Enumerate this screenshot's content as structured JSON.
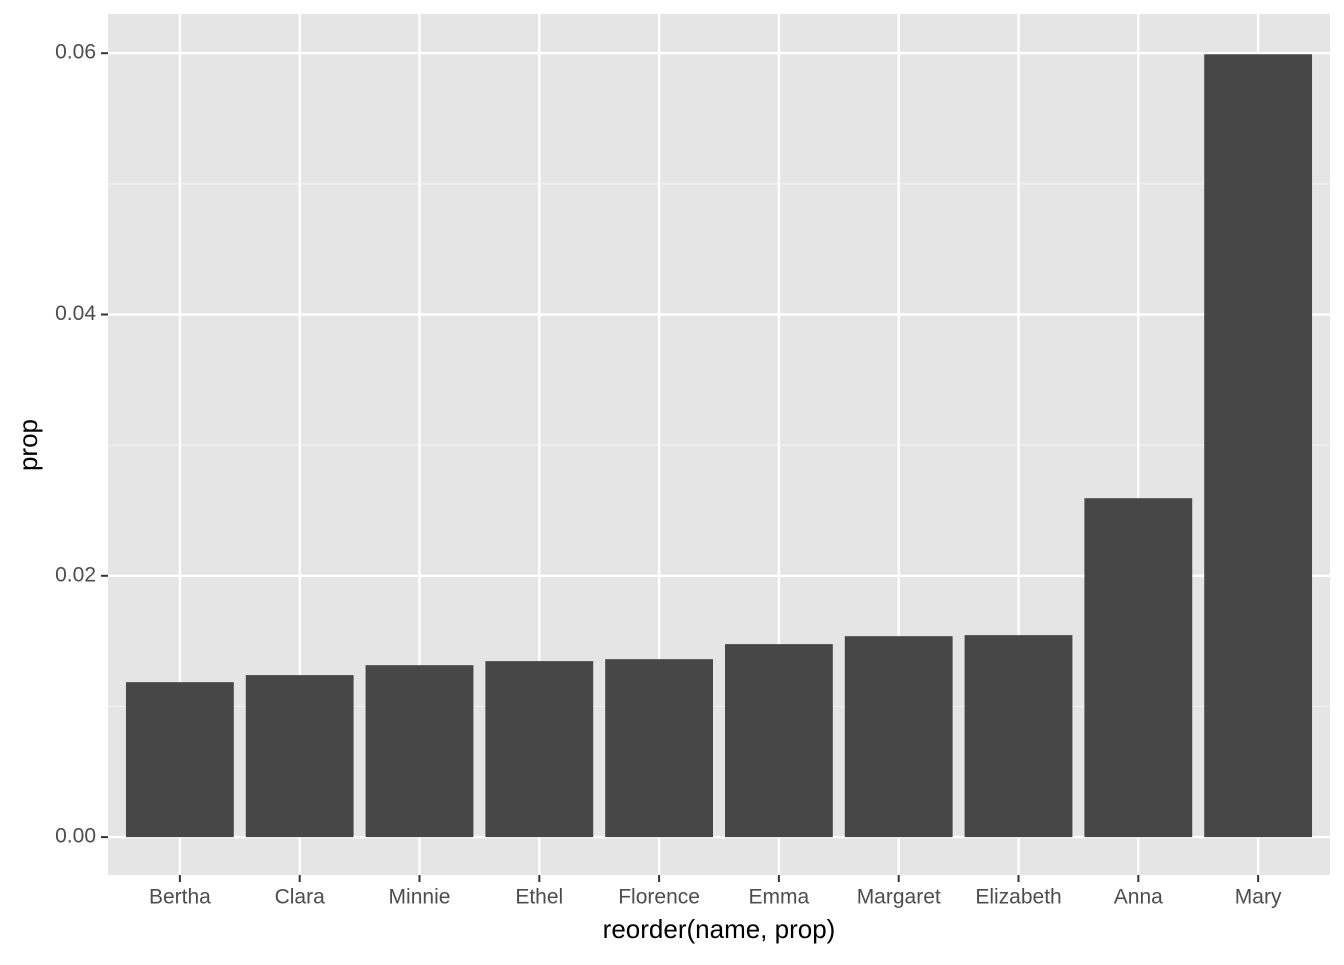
{
  "chart_data": {
    "type": "bar",
    "x_label": "reorder(name, prop)",
    "y_label": "prop",
    "categories": [
      "Bertha",
      "Clara",
      "Minnie",
      "Ethel",
      "Florence",
      "Emma",
      "Margaret",
      "Elizabeth",
      "Anna",
      "Mary"
    ],
    "values": [
      0.01186,
      0.0124,
      0.01316,
      0.01347,
      0.01362,
      0.01477,
      0.01538,
      0.01546,
      0.02594,
      0.05992
    ],
    "color": "#474747",
    "ylim": [
      -0.0029,
      0.063
    ],
    "yticks": [
      {
        "value": 0,
        "label": "0.00"
      },
      0.02,
      0.04,
      0.06
    ],
    "grid": true
  }
}
